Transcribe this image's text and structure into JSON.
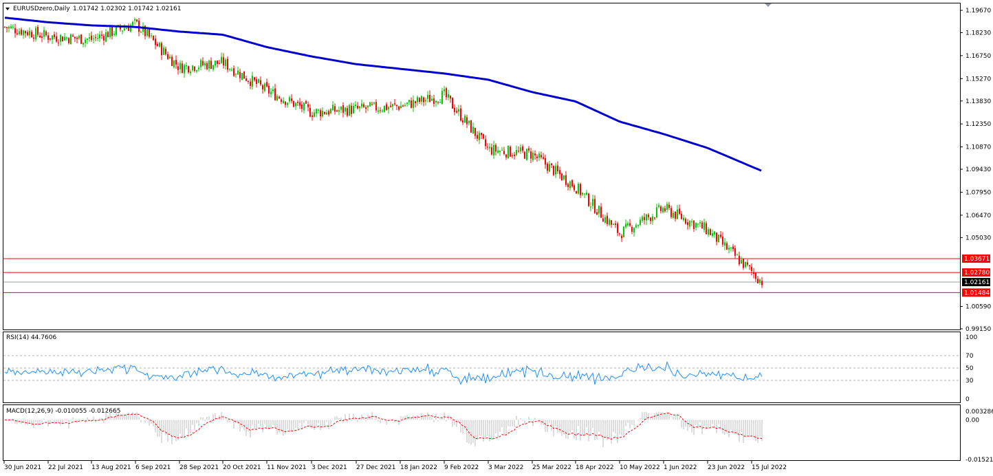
{
  "header": {
    "symbol_label": "EURUSDzero,Daily",
    "ohlc": "1.01742 1.02302 1.01742 1.02161"
  },
  "rsi": {
    "label": "RSI(14) 44.7606",
    "levels": [
      "100",
      "70",
      "50",
      "30",
      "0"
    ]
  },
  "macd": {
    "label": "MACD(12,26,9) -0.010055 -0.012665",
    "levels": [
      "0.003286",
      "0.00",
      "-0.01521"
    ]
  },
  "price_axis": [
    "1.19670",
    "1.18230",
    "1.16750",
    "1.15270",
    "1.13830",
    "1.12350",
    "1.10870",
    "1.09430",
    "1.07950",
    "1.06470",
    "1.05030",
    "1.00590",
    "0.99150"
  ],
  "date_axis": [
    "30 Jun 2021",
    "22 Jul 2021",
    "13 Aug 2021",
    "6 Sep 2021",
    "28 Sep 2021",
    "20 Oct 2021",
    "11 Nov 2021",
    "3 Dec 2021",
    "27 Dec 2021",
    "18 Jan 2022",
    "9 Feb 2022",
    "3 Mar 2022",
    "25 Mar 2022",
    "18 Apr 2022",
    "10 May 2022",
    "1 Jun 2022",
    "23 Jun 2022",
    "15 Jul 2022"
  ],
  "levels": [
    {
      "label": "1.03671",
      "value": 1.03671,
      "color": "#ff0000"
    },
    {
      "label": "1.02780",
      "value": 1.0278,
      "color": "#ff0000"
    },
    {
      "label": "1.02161",
      "value": 1.02161,
      "color": "#000000"
    },
    {
      "label": "1.01484",
      "value": 1.01484,
      "color": "#ff0000"
    }
  ],
  "colors": {
    "bull": "#00cc00",
    "bear": "#ff0000",
    "ma": "#0000cc",
    "rsi": "#1e90ff",
    "macd_hist": "#bbbbbb",
    "macd_signal": "#ff0000"
  },
  "chart_data": {
    "type": "candlestick",
    "symbol": "EURUSDzero",
    "timeframe": "Daily",
    "last_ohlc": {
      "open": 1.01742,
      "high": 1.02302,
      "low": 1.01742,
      "close": 1.02161
    },
    "price_range": [
      0.9915,
      1.1967
    ],
    "close_path": [
      [
        "30 Jun 2021",
        1.186
      ],
      [
        "22 Jul 2021",
        1.18
      ],
      [
        "13 Aug 2021",
        1.178
      ],
      [
        "6 Sep 2021",
        1.188
      ],
      [
        "28 Sep 2021",
        1.16
      ],
      [
        "20 Oct 2021",
        1.163
      ],
      [
        "11 Nov 2021",
        1.145
      ],
      [
        "3 Dec 2021",
        1.131
      ],
      [
        "27 Dec 2021",
        1.133
      ],
      [
        "18 Jan 2022",
        1.135
      ],
      [
        "9 Feb 2022",
        1.142
      ],
      [
        "3 Mar 2022",
        1.107
      ],
      [
        "25 Mar 2022",
        1.104
      ],
      [
        "18 Apr 2022",
        1.083
      ],
      [
        "10 May 2022",
        1.053
      ],
      [
        "1 Jun 2022",
        1.069
      ],
      [
        "23 Jun 2022",
        1.055
      ],
      [
        "15 Jul 2022",
        1.0216
      ]
    ],
    "ma_path": [
      [
        "30 Jun 2021",
        1.192
      ],
      [
        "22 Jul 2021",
        1.189
      ],
      [
        "13 Aug 2021",
        1.187
      ],
      [
        "6 Sep 2021",
        1.186
      ],
      [
        "28 Sep 2021",
        1.183
      ],
      [
        "20 Oct 2021",
        1.181
      ],
      [
        "11 Nov 2021",
        1.173
      ],
      [
        "3 Dec 2021",
        1.167
      ],
      [
        "27 Dec 2021",
        1.162
      ],
      [
        "18 Jan 2022",
        1.159
      ],
      [
        "9 Feb 2022",
        1.156
      ],
      [
        "3 Mar 2022",
        1.152
      ],
      [
        "25 Mar 2022",
        1.144
      ],
      [
        "18 Apr 2022",
        1.138
      ],
      [
        "10 May 2022",
        1.125
      ],
      [
        "1 Jun 2022",
        1.117
      ],
      [
        "23 Jun 2022",
        1.108
      ],
      [
        "15 Jul 2022",
        1.093
      ]
    ],
    "rsi": {
      "period": 14,
      "last": 44.7606,
      "levels": [
        70,
        50,
        30
      ]
    },
    "macd": {
      "params": [
        12,
        26,
        9
      ],
      "main": -0.010055,
      "signal": -0.012665
    },
    "horizontal_levels": [
      1.03671,
      1.0278,
      1.01484
    ]
  }
}
